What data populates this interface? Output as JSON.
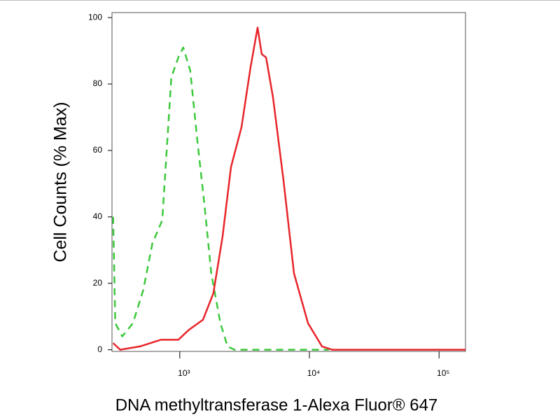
{
  "chart_data": {
    "type": "line",
    "y_label": "Cell Counts (% Max)",
    "x_label": "DNA methyltransferase 1-Alexa Fluor® 647",
    "xscale": "log",
    "xlim": [
      300,
      160000
    ],
    "ylim": [
      -0.5,
      101.5
    ],
    "xticks": [
      {
        "value": 1000,
        "label": "10³"
      },
      {
        "value": 10000,
        "label": "10⁴"
      },
      {
        "value": 100000,
        "label": "10⁵"
      }
    ],
    "yticks": [
      0,
      20,
      40,
      60,
      80,
      100
    ],
    "series": [
      {
        "color": "#3cc83c",
        "dash": true,
        "x": [
          306,
          318,
          360,
          435,
          523,
          615,
          733,
          861,
          975,
          1064,
          1205,
          1365,
          1546,
          1750,
          2059,
          2333,
          2642,
          14150
        ],
        "values": [
          40,
          8,
          4,
          8,
          18,
          32,
          39,
          82,
          88,
          91,
          84,
          63,
          44,
          23,
          8,
          1,
          0,
          0
        ]
      },
      {
        "color": "#e8252a",
        "dash": false,
        "x": [
          306,
          347,
          492,
          714,
          975,
          1176,
          1508,
          1816,
          2138,
          2484,
          2993,
          3516,
          3984,
          4289,
          4628,
          5237,
          6310,
          7603,
          9750,
          12500,
          15000,
          160000
        ],
        "values": [
          2,
          0,
          1,
          3,
          3,
          6,
          9,
          17,
          34,
          55,
          67,
          85,
          97,
          89,
          88,
          76,
          51,
          23,
          8,
          1,
          0,
          0
        ]
      }
    ]
  }
}
